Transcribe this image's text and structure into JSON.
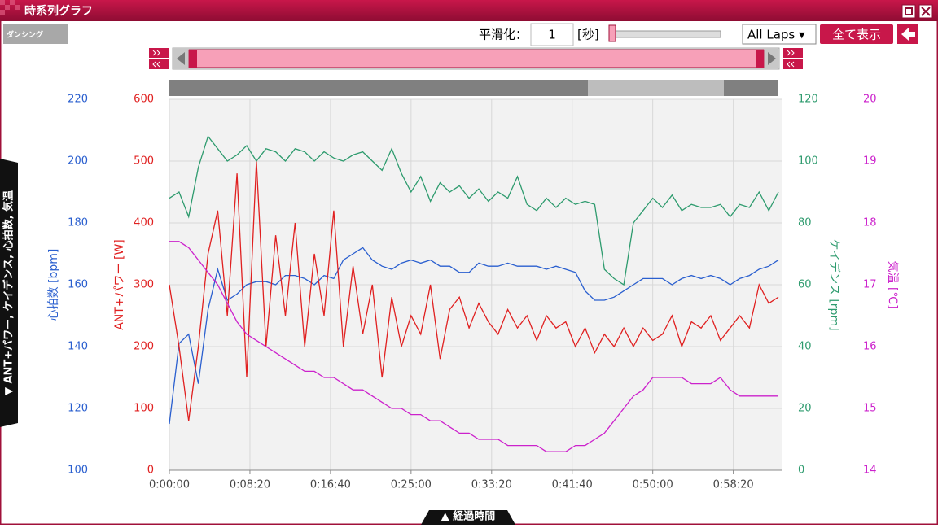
{
  "window": {
    "title": "時系列グラフ"
  },
  "logo": "ダンシング",
  "toolbar": {
    "smoothing_label": "平滑化：",
    "smoothing_value": "1",
    "smoothing_unit": "[秒]",
    "lap_select": "All Laps ▾",
    "show_all": "全て表示"
  },
  "side_tab": "▼ ANT+パワー, ケイデンス, 心拍数, 気温",
  "bottom_tab": "▲ 経過時間",
  "chart_data": {
    "type": "line",
    "grid": true,
    "xlim": [
      0,
      3800
    ],
    "xticks": [
      {
        "value": 0,
        "label": "0:00:00"
      },
      {
        "value": 500,
        "label": "0:08:20"
      },
      {
        "value": 1000,
        "label": "0:16:40"
      },
      {
        "value": 1500,
        "label": "0:25:00"
      },
      {
        "value": 2000,
        "label": "0:33:20"
      },
      {
        "value": 2500,
        "label": "0:41:40"
      },
      {
        "value": 3000,
        "label": "0:50:00"
      },
      {
        "value": 3500,
        "label": "0:58:20"
      }
    ],
    "ylabel": "心拍数 [bpm]",
    "ylim": [
      100,
      220
    ],
    "yticks": [
      100,
      120,
      140,
      160,
      180,
      200,
      220
    ],
    "y2label": "ANT+パワー [W]",
    "y2lim": [
      0,
      600
    ],
    "y2ticks": [
      0,
      100,
      200,
      300,
      400,
      500,
      600
    ],
    "y3label": "ケイデンス [rpm]",
    "y3lim": [
      0,
      120
    ],
    "y3ticks": [
      0,
      20,
      40,
      60,
      80,
      100,
      120
    ],
    "y4label": "気温 [℃]",
    "y4lim": [
      14,
      20
    ],
    "y4ticks": [
      14,
      15,
      16,
      17,
      18,
      19,
      20
    ],
    "x": [
      0,
      60,
      120,
      180,
      240,
      300,
      360,
      420,
      480,
      540,
      600,
      660,
      720,
      780,
      840,
      900,
      960,
      1020,
      1080,
      1140,
      1200,
      1260,
      1320,
      1380,
      1440,
      1500,
      1560,
      1620,
      1680,
      1740,
      1800,
      1860,
      1920,
      1980,
      2040,
      2100,
      2160,
      2220,
      2280,
      2340,
      2400,
      2460,
      2520,
      2580,
      2640,
      2700,
      2760,
      2820,
      2880,
      2940,
      3000,
      3060,
      3120,
      3180,
      3240,
      3300,
      3360,
      3420,
      3480,
      3540,
      3600,
      3660,
      3720,
      3780
    ],
    "series": [
      {
        "name": "心拍数",
        "axis": "y",
        "color": "#2a5fcf",
        "values": [
          115,
          141,
          144,
          128,
          152,
          165,
          155,
          157,
          160,
          161,
          161,
          160,
          163,
          163,
          162,
          160,
          163,
          162,
          168,
          170,
          172,
          168,
          166,
          165,
          167,
          168,
          167,
          168,
          166,
          166,
          164,
          164,
          167,
          166,
          166,
          167,
          166,
          166,
          166,
          165,
          166,
          165,
          164,
          158,
          155,
          155,
          156,
          158,
          160,
          162,
          162,
          162,
          160,
          162,
          163,
          162,
          163,
          162,
          160,
          162,
          163,
          165,
          166,
          168
        ]
      },
      {
        "name": "ANT+パワー",
        "axis": "y2",
        "color": "#e02020",
        "values": [
          300,
          200,
          80,
          200,
          350,
          420,
          250,
          480,
          150,
          500,
          200,
          380,
          250,
          400,
          200,
          350,
          250,
          420,
          200,
          330,
          220,
          300,
          150,
          280,
          200,
          250,
          220,
          300,
          180,
          260,
          280,
          230,
          270,
          240,
          220,
          260,
          230,
          250,
          210,
          250,
          230,
          240,
          200,
          230,
          190,
          220,
          200,
          230,
          200,
          230,
          210,
          220,
          250,
          200,
          240,
          230,
          250,
          210,
          230,
          250,
          230,
          300,
          270,
          280
        ]
      },
      {
        "name": "ケイデンス",
        "axis": "y3",
        "color": "#2e9b6e",
        "values": [
          88,
          90,
          82,
          98,
          108,
          104,
          100,
          102,
          105,
          100,
          104,
          103,
          100,
          104,
          103,
          100,
          103,
          101,
          100,
          102,
          103,
          100,
          97,
          104,
          96,
          90,
          95,
          87,
          93,
          90,
          92,
          88,
          91,
          87,
          90,
          88,
          95,
          86,
          84,
          88,
          85,
          88,
          86,
          87,
          86,
          65,
          62,
          60,
          80,
          84,
          88,
          85,
          89,
          84,
          86,
          85,
          85,
          86,
          82,
          86,
          85,
          90,
          84,
          90
        ]
      },
      {
        "name": "気温",
        "axis": "y4",
        "color": "#cc22cc",
        "values": [
          17.7,
          17.7,
          17.6,
          17.4,
          17.2,
          17,
          16.7,
          16.4,
          16.2,
          16.1,
          16,
          15.9,
          15.8,
          15.7,
          15.6,
          15.6,
          15.5,
          15.5,
          15.4,
          15.3,
          15.3,
          15.2,
          15.1,
          15,
          15,
          14.9,
          14.9,
          14.8,
          14.8,
          14.7,
          14.6,
          14.6,
          14.5,
          14.5,
          14.5,
          14.4,
          14.4,
          14.4,
          14.4,
          14.3,
          14.3,
          14.3,
          14.4,
          14.4,
          14.5,
          14.6,
          14.8,
          15,
          15.2,
          15.3,
          15.5,
          15.5,
          15.5,
          15.5,
          15.4,
          15.4,
          15.4,
          15.5,
          15.3,
          15.2,
          15.2,
          15.2,
          15.2,
          15.2
        ]
      }
    ]
  }
}
